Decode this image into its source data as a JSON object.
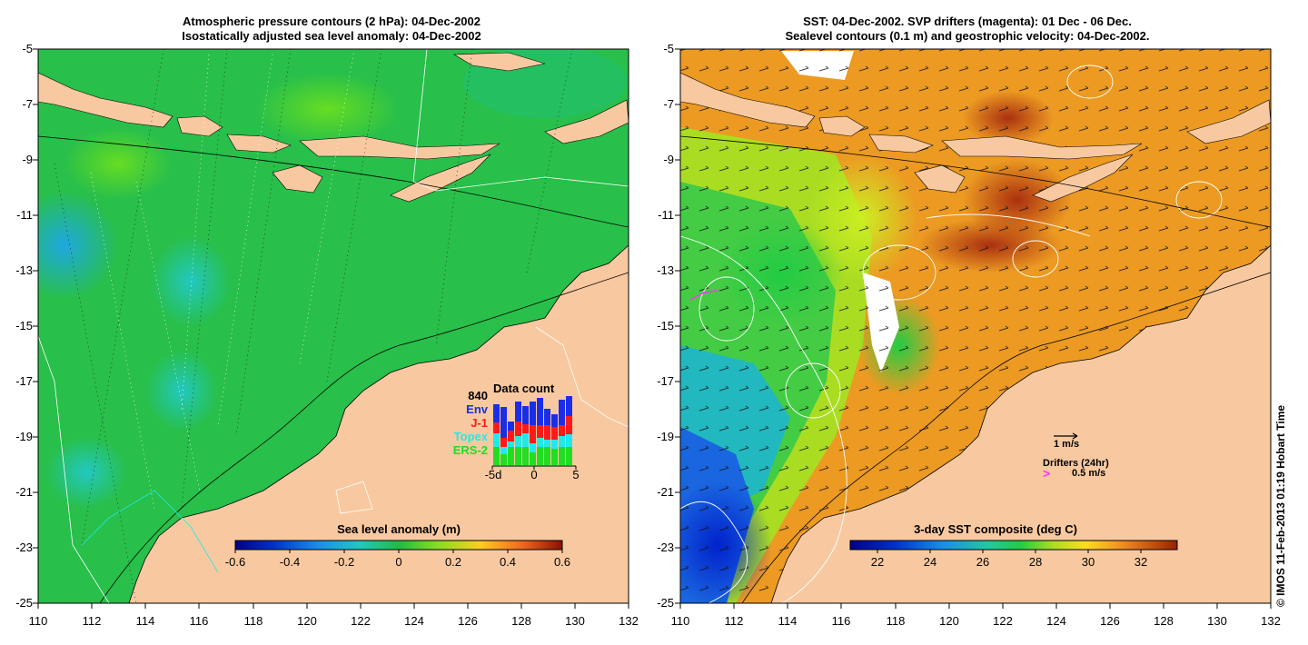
{
  "left_panel": {
    "title_line1": "Atmospheric pressure contours (2 hPa): 04-Dec-2002",
    "title_line2": "Isostatically adjusted sea level anomaly: 04-Dec-2002",
    "colorbar_title": "Sea level anomaly (m)",
    "colorbar_ticks": [
      "-0.6",
      "-0.4",
      "-0.2",
      "0",
      "0.2",
      "0.4",
      "0.6"
    ],
    "data_count": {
      "title": "Data count",
      "total": "840",
      "legend": [
        {
          "label": "Env",
          "color": "#1a2ee8"
        },
        {
          "label": "J-1",
          "color": "#ff1a1a"
        },
        {
          "label": "Topex",
          "color": "#22e8ee"
        },
        {
          "label": "ERS-2",
          "color": "#22dd22"
        }
      ],
      "x_ticks": [
        "-5d",
        "0",
        "5"
      ]
    }
  },
  "right_panel": {
    "title_line1": "SST: 04-Dec-2002. SVP drifters (magenta): 01 Dec - 06 Dec.",
    "title_line2": "Sealevel contours (0.1 m) and geostrophic velocity: 04-Dec-2002.",
    "colorbar_title": "3-day SST composite (deg C)",
    "colorbar_ticks": [
      "22",
      "24",
      "26",
      "28",
      "30",
      "32"
    ],
    "velocity_scale_label": "1 m/s",
    "drifters_label": "Drifters (24hr)",
    "drifters_scale_label": "0.5 m/s",
    "drifter_marker_color": "#ff33ff"
  },
  "y_ticks": [
    "-5",
    "-7",
    "-9",
    "-11",
    "-13",
    "-15",
    "-17",
    "-19",
    "-21",
    "-23",
    "-25"
  ],
  "x_ticks": [
    "110",
    "112",
    "114",
    "116",
    "118",
    "120",
    "122",
    "124",
    "126",
    "128",
    "130",
    "132"
  ],
  "copyright": "© IMOS 11-Feb-2013 01:19 Hobart Time",
  "colors": {
    "land": "#f8c9a0",
    "ocean_green": "#22bb44",
    "sst_orange": "#f0a020"
  }
}
